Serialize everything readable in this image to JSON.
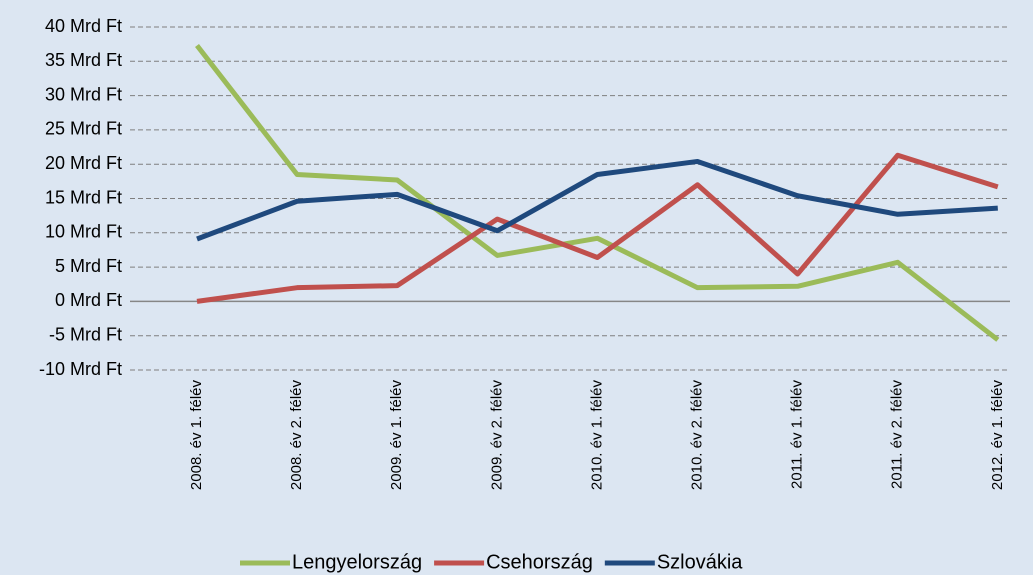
{
  "chart_data": {
    "type": "line",
    "categories": [
      "2008. év 1. félév",
      "2008. év 2. félév",
      "2009. év 1. félév",
      "2009. év 2. félév",
      "2010. év 1. félév",
      "2010. év 2. félév",
      "2011. év 1. félév",
      "2011. év 2. félév",
      "2012. év 1. félév"
    ],
    "series": [
      {
        "name": "Lengyelország",
        "color": "#9bbb59",
        "values": [
          37.3,
          18.5,
          17.7,
          6.7,
          9.2,
          2.0,
          2.2,
          5.7,
          -5.6
        ]
      },
      {
        "name": "Csehország",
        "color": "#c0504d",
        "values": [
          0,
          2.0,
          2.3,
          12.0,
          6.4,
          17.0,
          4.0,
          21.3,
          16.7
        ]
      },
      {
        "name": "Szlovákia",
        "color": "#1f497d",
        "values": [
          9.1,
          14.6,
          15.6,
          10.3,
          18.5,
          20.4,
          15.4,
          12.7,
          13.6
        ]
      }
    ],
    "ylim": [
      -10,
      40
    ],
    "yticks": [
      {
        "value": -10,
        "label": "-10 Mrd Ft"
      },
      {
        "value": -5,
        "label": "-5 Mrd Ft"
      },
      {
        "value": 0,
        "label": "0 Mrd Ft"
      },
      {
        "value": 5,
        "label": "5 Mrd Ft"
      },
      {
        "value": 10,
        "label": "10 Mrd Ft"
      },
      {
        "value": 15,
        "label": "15 Mrd Ft"
      },
      {
        "value": 20,
        "label": "20 Mrd Ft"
      },
      {
        "value": 25,
        "label": "25 Mrd Ft"
      },
      {
        "value": 30,
        "label": "30 Mrd Ft"
      },
      {
        "value": 35,
        "label": "35 Mrd Ft"
      },
      {
        "value": 40,
        "label": "40 Mrd Ft"
      }
    ],
    "grid": true,
    "legend": "bottom"
  }
}
